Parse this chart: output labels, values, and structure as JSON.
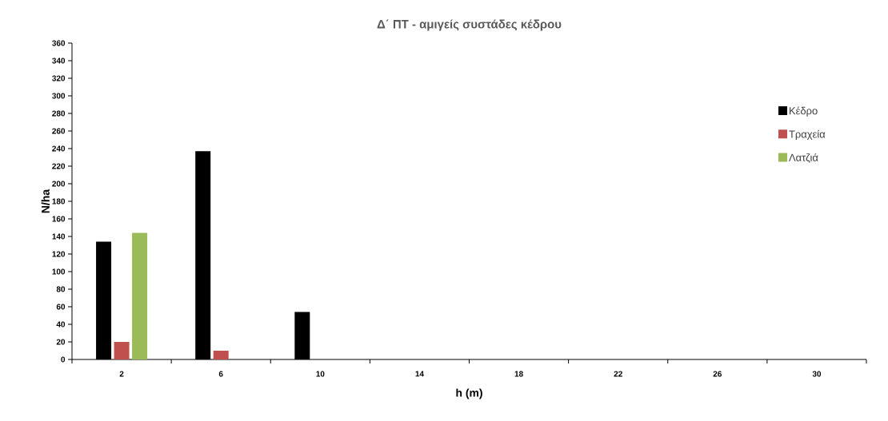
{
  "chart_data": {
    "type": "bar",
    "title": "Δ΄ ΠΤ - αμιγείς συστάδες κέδρου",
    "xlabel": "h (m)",
    "ylabel": "N/ha",
    "categories": [
      "2",
      "6",
      "10",
      "14",
      "18",
      "22",
      "26",
      "30"
    ],
    "series": [
      {
        "name": "Κέδρο",
        "color": "#000000",
        "values": [
          134,
          237,
          54,
          0,
          0,
          0,
          0,
          0
        ]
      },
      {
        "name": "Τραχεία",
        "color": "#c0504d",
        "values": [
          20,
          10,
          0,
          0,
          0,
          0,
          0,
          0
        ]
      },
      {
        "name": "Λατζιά",
        "color": "#9bbb59",
        "values": [
          144,
          0,
          0,
          0,
          0,
          0,
          0,
          0
        ]
      }
    ],
    "ylim": [
      0,
      360
    ],
    "yticks": [
      0,
      20,
      40,
      60,
      80,
      100,
      120,
      140,
      160,
      180,
      200,
      220,
      240,
      260,
      280,
      300,
      320,
      340,
      360
    ],
    "grid": false,
    "legend": "right"
  }
}
